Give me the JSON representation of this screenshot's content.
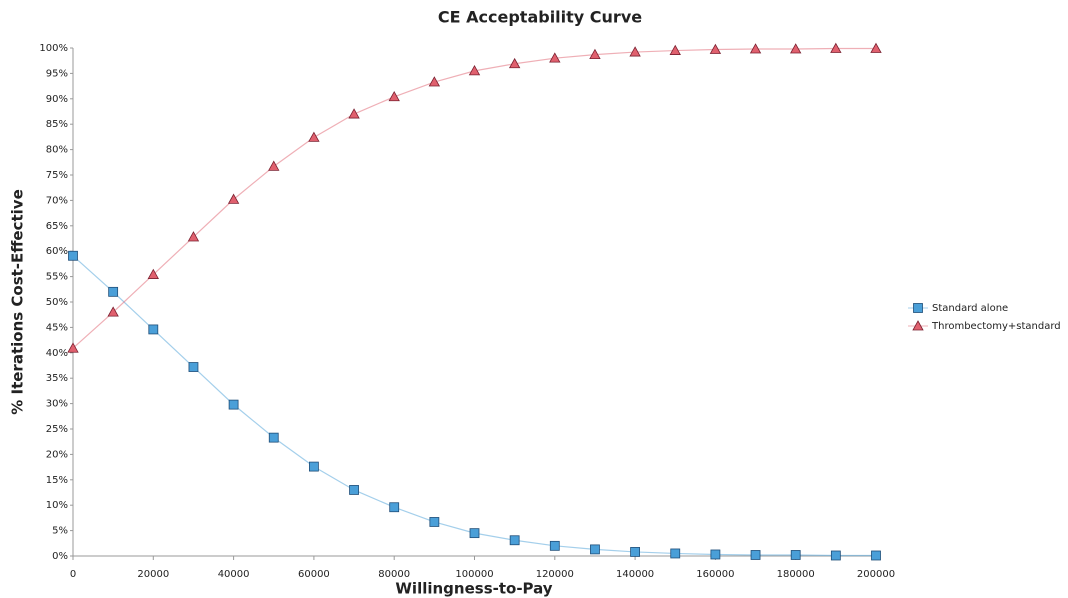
{
  "chart_data": {
    "type": "line",
    "title": "CE Acceptability Curve",
    "x_label": "Willingness-to-Pay",
    "y_label": "% Iterations Cost-Effective",
    "x": [
      0,
      10000,
      20000,
      30000,
      40000,
      50000,
      60000,
      70000,
      80000,
      90000,
      100000,
      110000,
      120000,
      130000,
      140000,
      150000,
      160000,
      170000,
      180000,
      190000,
      200000
    ],
    "series": [
      {
        "name": "Standard alone",
        "color": "#4a9fd8",
        "marker": "square",
        "values": [
          59.1,
          52.0,
          44.6,
          37.2,
          29.8,
          23.3,
          17.6,
          13.0,
          9.6,
          6.7,
          4.5,
          3.1,
          2.0,
          1.3,
          0.8,
          0.5,
          0.3,
          0.2,
          0.2,
          0.1,
          0.1
        ]
      },
      {
        "name": "Thrombectomy+standard",
        "color": "#e0606e",
        "marker": "triangle",
        "values": [
          40.9,
          48.0,
          55.4,
          62.8,
          70.2,
          76.7,
          82.4,
          87.0,
          90.4,
          93.3,
          95.5,
          96.9,
          98.0,
          98.7,
          99.2,
          99.5,
          99.7,
          99.8,
          99.8,
          99.9,
          99.9
        ]
      }
    ],
    "xlim": [
      0,
      200000
    ],
    "xticks": [
      0,
      20000,
      40000,
      60000,
      80000,
      100000,
      120000,
      140000,
      160000,
      180000,
      200000
    ],
    "ylim": [
      0,
      100
    ],
    "yticks": [
      {
        "value": 0,
        "label": "0%"
      },
      {
        "value": 5,
        "label": "5%"
      },
      {
        "value": 10,
        "label": "10%"
      },
      {
        "value": 15,
        "label": "15%"
      },
      {
        "value": 20,
        "label": "20%"
      },
      {
        "value": 25,
        "label": "25%"
      },
      {
        "value": 30,
        "label": "30%"
      },
      {
        "value": 35,
        "label": "35%"
      },
      {
        "value": 40,
        "label": "40%"
      },
      {
        "value": 45,
        "label": "45%"
      },
      {
        "value": 50,
        "label": "50%"
      },
      {
        "value": 55,
        "label": "55%"
      },
      {
        "value": 60,
        "label": "60%"
      },
      {
        "value": 65,
        "label": "65%"
      },
      {
        "value": 70,
        "label": "70%"
      },
      {
        "value": 75,
        "label": "75%"
      },
      {
        "value": 80,
        "label": "80%"
      },
      {
        "value": 85,
        "label": "85%"
      },
      {
        "value": 90,
        "label": "90%"
      },
      {
        "value": 95,
        "label": "95%"
      },
      {
        "value": 100,
        "label": "100%"
      }
    ],
    "grid": false,
    "legend_position": "right"
  }
}
